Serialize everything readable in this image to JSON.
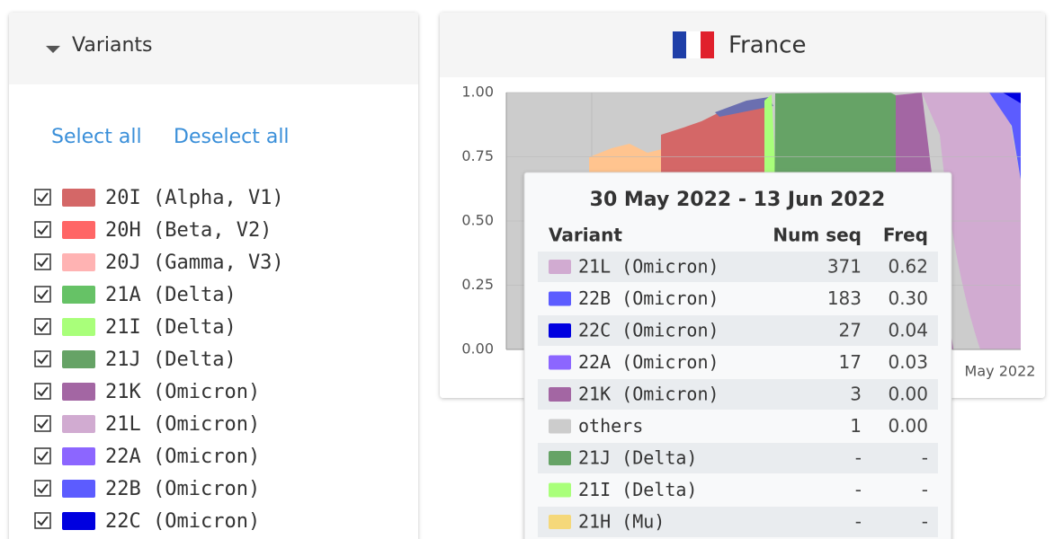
{
  "variants_panel": {
    "title": "Variants",
    "select_all": "Select all",
    "deselect_all": "Deselect all",
    "items": [
      {
        "label": "20I (Alpha, V1)",
        "color": "#d46767",
        "checked": true
      },
      {
        "label": "20H (Beta, V2)",
        "color": "#ff6666",
        "checked": true
      },
      {
        "label": "20J (Gamma, V3)",
        "color": "#ffb3b3",
        "checked": true
      },
      {
        "label": "21A (Delta)",
        "color": "#66c266",
        "checked": true
      },
      {
        "label": "21I (Delta)",
        "color": "#a9ff7a",
        "checked": true
      },
      {
        "label": "21J (Delta)",
        "color": "#66a366",
        "checked": true
      },
      {
        "label": "21K (Omicron)",
        "color": "#a366a3",
        "checked": true
      },
      {
        "label": "21L (Omicron)",
        "color": "#d1abd1",
        "checked": true
      },
      {
        "label": "22A (Omicron)",
        "color": "#8c66ff",
        "checked": true
      },
      {
        "label": "22B (Omicron)",
        "color": "#5c5cff",
        "checked": true
      },
      {
        "label": "22C (Omicron)",
        "color": "#0000e0",
        "checked": true
      }
    ]
  },
  "country_panel": {
    "title": "France",
    "chart": {
      "ylim": [
        0,
        1
      ],
      "yticks": [
        {
          "value": 0,
          "label": "0.00"
        },
        {
          "value": 0.25,
          "label": "0.25"
        },
        {
          "value": 0.5,
          "label": "0.50"
        },
        {
          "value": 0.75,
          "label": "0.75"
        },
        {
          "value": 1,
          "label": "1.00"
        }
      ],
      "x_label": "May 2022"
    },
    "tooltip": {
      "title": "30 May 2022 - 13 Jun 2022",
      "columns": [
        "Variant",
        "Num seq",
        "Freq"
      ],
      "rows": [
        {
          "variant": "21L (Omicron)",
          "color": "#d1abd1",
          "num_seq": 371,
          "freq": "0.62"
        },
        {
          "variant": "22B (Omicron)",
          "color": "#5c5cff",
          "num_seq": 183,
          "freq": "0.30"
        },
        {
          "variant": "22C (Omicron)",
          "color": "#0000e0",
          "num_seq": 27,
          "freq": "0.04"
        },
        {
          "variant": "22A (Omicron)",
          "color": "#8c66ff",
          "num_seq": 17,
          "freq": "0.03"
        },
        {
          "variant": "21K (Omicron)",
          "color": "#a366a3",
          "num_seq": 3,
          "freq": "0.00"
        },
        {
          "variant": "others",
          "color": "#cccccc",
          "num_seq": 1,
          "freq": "0.00"
        },
        {
          "variant": "21J (Delta)",
          "color": "#66a366",
          "num_seq": "-",
          "freq": "-"
        },
        {
          "variant": "21I (Delta)",
          "color": "#a9ff7a",
          "num_seq": "-",
          "freq": "-"
        },
        {
          "variant": "21H (Mu)",
          "color": "#f5d87a",
          "num_seq": "-",
          "freq": "-"
        }
      ]
    }
  }
}
